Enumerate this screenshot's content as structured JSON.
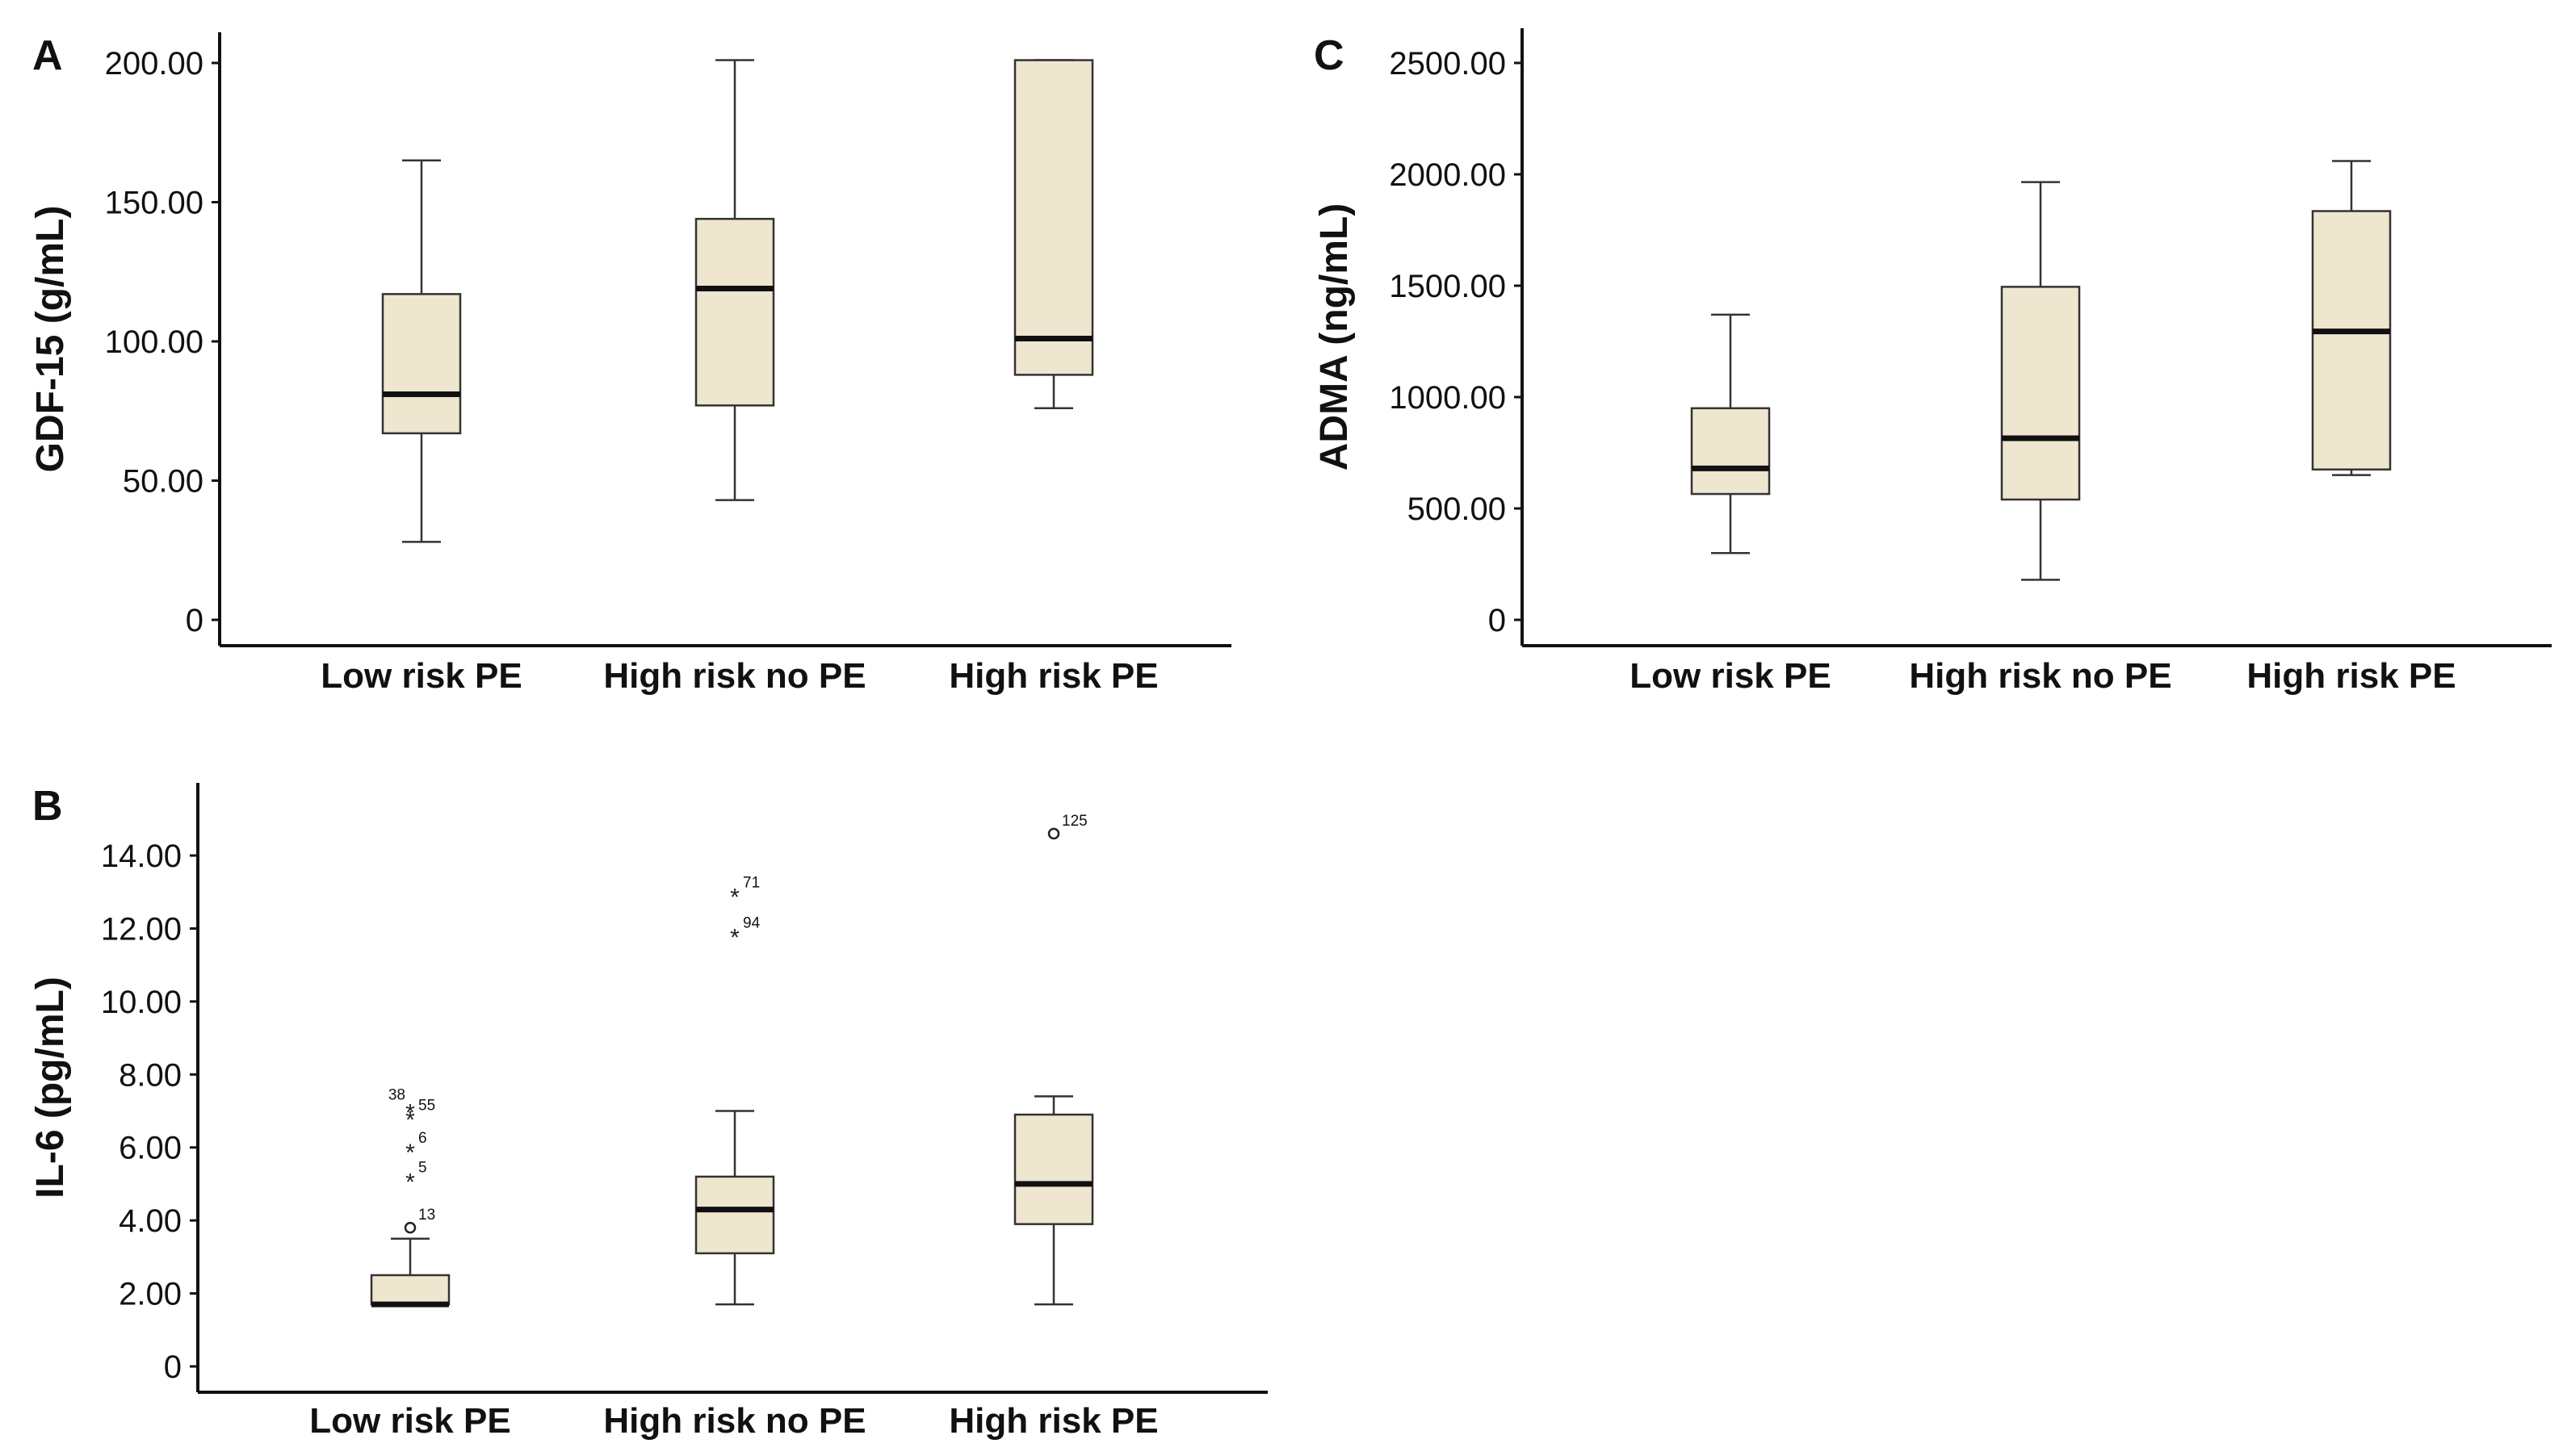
{
  "chart_data": [
    {
      "panel": "A",
      "type": "box",
      "ylabel": "GDF-15 (g/mL)",
      "ylim": [
        0,
        210
      ],
      "yticks": [
        0,
        50,
        100,
        150,
        200
      ],
      "ytick_labels": [
        "0",
        "50.00",
        "100.00",
        "150.00",
        "200.00"
      ],
      "categories": [
        "Low risk PE",
        "High risk no PE",
        "High risk PE"
      ],
      "boxes": [
        {
          "min": 28,
          "q1": 67,
          "median": 81,
          "q3": 117,
          "max": 165,
          "outliers": []
        },
        {
          "min": 43,
          "q1": 77,
          "median": 119,
          "q3": 144,
          "max": 201,
          "outliers": []
        },
        {
          "min": 76,
          "q1": 88,
          "median": 101,
          "q3": 201,
          "max": 201,
          "outliers": []
        }
      ]
    },
    {
      "panel": "B",
      "type": "box",
      "ylabel": "IL-6 (pg/mL)",
      "ylim": [
        0,
        15.5
      ],
      "yticks": [
        0,
        2,
        4,
        6,
        8,
        10,
        12,
        14
      ],
      "ytick_labels": [
        "0",
        "2.00",
        "4.00",
        "6.00",
        "8.00",
        "10.00",
        "12.00",
        "14.00"
      ],
      "categories": [
        "Low risk PE",
        "High risk no PE",
        "High risk PE"
      ],
      "boxes": [
        {
          "min": 1.7,
          "q1": 1.7,
          "median": 1.7,
          "q3": 2.5,
          "max": 3.5,
          "outliers": [
            {
              "value": 3.8,
              "marker": "circle",
              "label": "13"
            },
            {
              "value": 5.1,
              "marker": "star",
              "label": "5"
            },
            {
              "value": 5.9,
              "marker": "star",
              "label": "6"
            },
            {
              "value": 6.8,
              "marker": "star",
              "label": "55"
            },
            {
              "value": 7.0,
              "marker": "star",
              "label": "38"
            }
          ]
        },
        {
          "min": 1.7,
          "q1": 3.1,
          "median": 4.3,
          "q3": 5.2,
          "max": 7.0,
          "outliers": [
            {
              "value": 11.8,
              "marker": "star",
              "label": "94"
            },
            {
              "value": 12.9,
              "marker": "star",
              "label": "71"
            }
          ]
        },
        {
          "min": 1.7,
          "q1": 3.9,
          "median": 5.0,
          "q3": 6.9,
          "max": 7.4,
          "outliers": [
            {
              "value": 14.6,
              "marker": "circle",
              "label": "125"
            }
          ]
        }
      ]
    },
    {
      "panel": "C",
      "type": "box",
      "ylabel": "ADMA (ng/mL)",
      "ylim": [
        0,
        2650
      ],
      "yticks": [
        0,
        500,
        1000,
        1500,
        2000,
        2500
      ],
      "ytick_labels": [
        "0",
        "500.00",
        "1000.00",
        "1500.00",
        "2000.00",
        "2500.00"
      ],
      "categories": [
        "Low risk PE",
        "High risk no PE",
        "High risk PE"
      ],
      "boxes": [
        {
          "min": 300,
          "q1": 565,
          "median": 680,
          "q3": 950,
          "max": 1370,
          "outliers": []
        },
        {
          "min": 180,
          "q1": 540,
          "median": 815,
          "q3": 1495,
          "max": 1965,
          "outliers": []
        },
        {
          "min": 650,
          "q1": 675,
          "median": 1295,
          "q3": 1835,
          "max": 2060,
          "outliers": []
        }
      ]
    }
  ]
}
